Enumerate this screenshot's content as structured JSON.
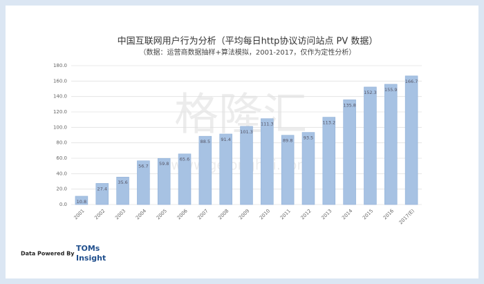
{
  "chart_data": {
    "type": "bar",
    "title": "中国互联网用户行为分析（平均每日http协议访问站点 PV 数据）",
    "subtitle": "（数据：运营商数据抽样+算法模拟，2001-2017，仅作为定性分析）",
    "categories": [
      "2001",
      "2002",
      "2003",
      "2004",
      "2005",
      "2006",
      "2007",
      "2008",
      "2009",
      "2010",
      "2011",
      "2012",
      "2013",
      "2014",
      "2015",
      "2016",
      "2017(E)"
    ],
    "values": [
      10.8,
      27.4,
      35.6,
      56.7,
      59.8,
      65.6,
      88.5,
      91.4,
      101.3,
      111.3,
      89.8,
      93.5,
      113.2,
      135.8,
      152.3,
      155.9,
      166.7
    ],
    "color": "#a7c2e3",
    "ylim": [
      0,
      180
    ],
    "yticks": [
      {
        "value": 0,
        "label": "0.0"
      },
      {
        "value": 20,
        "label": "20.0"
      },
      {
        "value": 40,
        "label": "40.0"
      },
      {
        "value": 60,
        "label": "60.0"
      },
      {
        "value": 80,
        "label": "80.0"
      },
      {
        "value": 100,
        "label": "100.0"
      },
      {
        "value": 120,
        "label": "120.0"
      },
      {
        "value": 140,
        "label": "140.0"
      },
      {
        "value": 160,
        "label": "160.0"
      },
      {
        "value": 180,
        "label": "180.0"
      }
    ],
    "grid": true,
    "watermark": "格隆汇",
    "watermark_url": "www.gelonghui.com"
  },
  "footer": {
    "credit": "Data Powered By",
    "brand_line1": "TOMs",
    "brand_line2": "Insight"
  }
}
